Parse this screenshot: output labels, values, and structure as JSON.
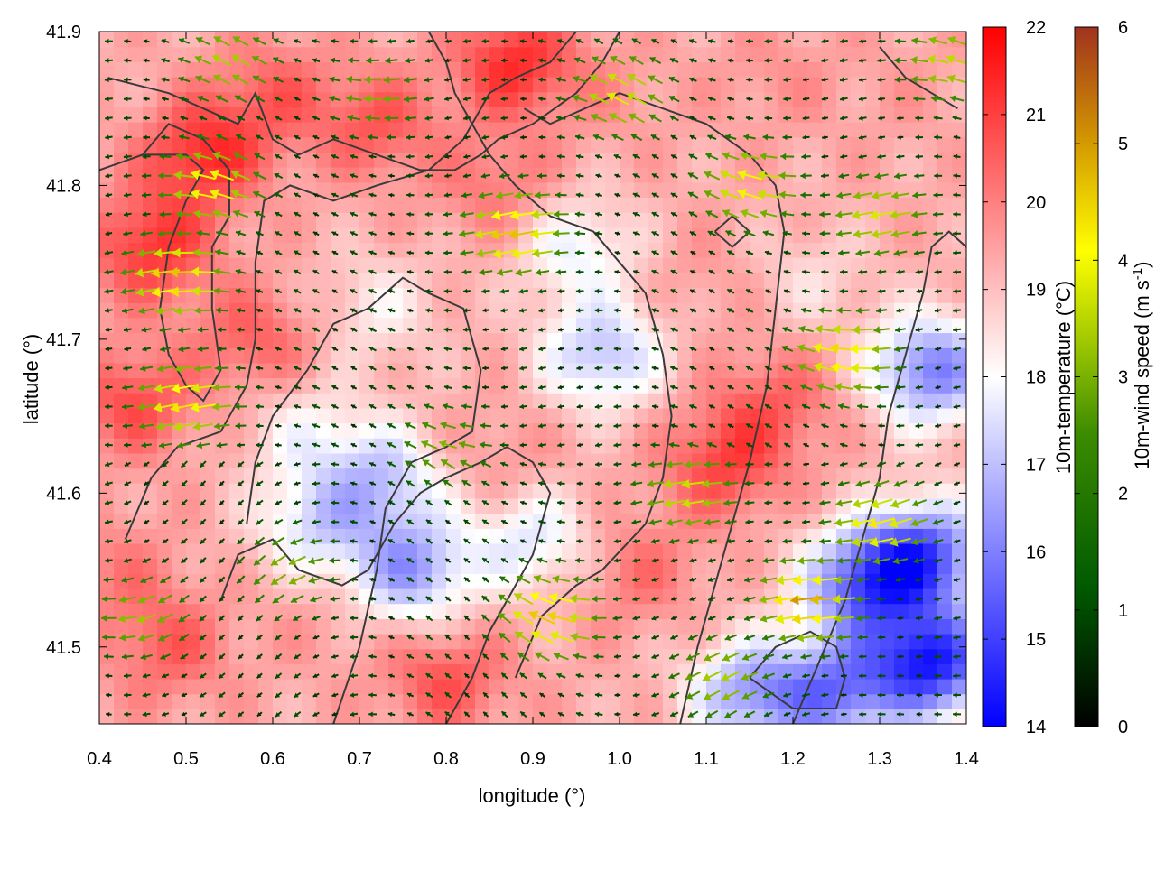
{
  "chart_data": {
    "type": "heatmap",
    "subtype": "temperature field with wind vector arrows and contour lines",
    "xlabel": "longitude (°)",
    "ylabel": "latitude (°)",
    "xlim": [
      0.4,
      1.4
    ],
    "ylim": [
      41.45,
      41.9
    ],
    "xticks": [
      "0.4",
      "0.5",
      "0.6",
      "0.7",
      "0.8",
      "0.9",
      "1.0",
      "1.1",
      "1.2",
      "1.3",
      "1.4"
    ],
    "yticks": [
      "41.5",
      "41.6",
      "41.7",
      "41.8",
      "41.9"
    ],
    "temperature_colorbar": {
      "label": "10m-temperature (°C)",
      "range": [
        14,
        22
      ],
      "ticks": [
        "14",
        "15",
        "16",
        "17",
        "18",
        "19",
        "20",
        "21",
        "22"
      ],
      "colors": [
        "#0000ff",
        "#ffffff",
        "#ff0000"
      ]
    },
    "wind_colorbar": {
      "label_main": "10m-wind speed (m s",
      "label_sup": "-1",
      "label_end": ")",
      "range": [
        0,
        6
      ],
      "ticks": [
        "0",
        "1",
        "2",
        "3",
        "4",
        "5",
        "6"
      ],
      "colors": [
        "#000000",
        "#005a00",
        "#3c8c00",
        "#a0c800",
        "#ffff00",
        "#d29600",
        "#a0321e"
      ]
    },
    "temperature_blobs": [
      {
        "lon": 0.46,
        "lat": 41.76,
        "t": 21.2
      },
      {
        "lon": 0.52,
        "lat": 41.82,
        "t": 21.3
      },
      {
        "lon": 0.44,
        "lat": 41.66,
        "t": 20.8
      },
      {
        "lon": 0.58,
        "lat": 41.7,
        "t": 20.5
      },
      {
        "lon": 0.6,
        "lat": 41.86,
        "t": 20.4
      },
      {
        "lon": 0.72,
        "lat": 41.84,
        "t": 20.6
      },
      {
        "lon": 0.88,
        "lat": 41.88,
        "t": 21.3
      },
      {
        "lon": 0.86,
        "lat": 41.8,
        "t": 20.2
      },
      {
        "lon": 1.0,
        "lat": 41.86,
        "t": 19.6
      },
      {
        "lon": 1.18,
        "lat": 41.87,
        "t": 19.7
      },
      {
        "lon": 1.32,
        "lat": 41.86,
        "t": 19.5
      },
      {
        "lon": 1.1,
        "lat": 41.74,
        "t": 19.6
      },
      {
        "lon": 1.18,
        "lat": 41.66,
        "t": 20.4
      },
      {
        "lon": 1.12,
        "lat": 41.62,
        "t": 20.9
      },
      {
        "lon": 0.86,
        "lat": 41.62,
        "t": 19.8
      },
      {
        "lon": 1.02,
        "lat": 41.55,
        "t": 20.2
      },
      {
        "lon": 0.42,
        "lat": 41.55,
        "t": 20.0
      },
      {
        "lon": 0.48,
        "lat": 41.5,
        "t": 20.5
      },
      {
        "lon": 0.66,
        "lat": 41.52,
        "t": 19.6
      },
      {
        "lon": 0.8,
        "lat": 41.48,
        "t": 20.7
      },
      {
        "lon": 0.95,
        "lat": 41.76,
        "t": 17.8
      },
      {
        "lon": 0.98,
        "lat": 41.69,
        "t": 17.0
      },
      {
        "lon": 0.73,
        "lat": 41.61,
        "t": 17.3
      },
      {
        "lon": 0.76,
        "lat": 41.55,
        "t": 16.5
      },
      {
        "lon": 0.65,
        "lat": 41.58,
        "t": 17.5
      },
      {
        "lon": 0.9,
        "lat": 41.57,
        "t": 17.6
      },
      {
        "lon": 1.36,
        "lat": 41.68,
        "t": 16.0
      },
      {
        "lon": 1.35,
        "lat": 41.56,
        "t": 15.4
      },
      {
        "lon": 1.36,
        "lat": 41.49,
        "t": 14.6
      },
      {
        "lon": 1.28,
        "lat": 41.54,
        "t": 15.8
      },
      {
        "lon": 1.15,
        "lat": 41.47,
        "t": 16.6
      },
      {
        "lon": 1.25,
        "lat": 41.47,
        "t": 16.2
      },
      {
        "lon": 1.22,
        "lat": 41.74,
        "t": 18.6
      },
      {
        "lon": 0.72,
        "lat": 41.72,
        "t": 18.3
      },
      {
        "lon": 0.64,
        "lat": 41.64,
        "t": 18.2
      }
    ],
    "wind_jets": [
      {
        "lon": 0.49,
        "lat": 41.74,
        "speed": 4.3
      },
      {
        "lon": 0.5,
        "lat": 41.66,
        "speed": 3.9
      },
      {
        "lon": 0.53,
        "lat": 41.8,
        "speed": 3.7
      },
      {
        "lon": 0.55,
        "lat": 41.88,
        "speed": 2.8
      },
      {
        "lon": 0.88,
        "lat": 41.77,
        "speed": 4.3
      },
      {
        "lon": 1.0,
        "lat": 41.86,
        "speed": 3.3
      },
      {
        "lon": 1.15,
        "lat": 41.8,
        "speed": 3.6
      },
      {
        "lon": 1.3,
        "lat": 41.78,
        "speed": 3.2
      },
      {
        "lon": 1.26,
        "lat": 41.69,
        "speed": 4.0
      },
      {
        "lon": 1.08,
        "lat": 41.6,
        "speed": 3.2
      },
      {
        "lon": 0.92,
        "lat": 41.52,
        "speed": 4.2
      },
      {
        "lon": 1.22,
        "lat": 41.53,
        "speed": 4.6
      },
      {
        "lon": 1.3,
        "lat": 41.58,
        "speed": 3.8
      },
      {
        "lon": 1.12,
        "lat": 41.48,
        "speed": 2.8
      },
      {
        "lon": 0.62,
        "lat": 41.55,
        "speed": 2.4
      },
      {
        "lon": 0.45,
        "lat": 41.52,
        "speed": 2.6
      },
      {
        "lon": 0.72,
        "lat": 41.86,
        "speed": 2.3
      },
      {
        "lon": 0.8,
        "lat": 41.63,
        "speed": 2.3
      },
      {
        "lon": 1.38,
        "lat": 41.88,
        "speed": 3.0
      }
    ],
    "contours": [
      [
        [
          0.41,
          41.87
        ],
        [
          0.48,
          41.86
        ],
        [
          0.52,
          41.85
        ],
        [
          0.56,
          41.84
        ],
        [
          0.58,
          41.86
        ],
        [
          0.6,
          41.83
        ],
        [
          0.63,
          41.82
        ],
        [
          0.67,
          41.83
        ],
        [
          0.72,
          41.82
        ],
        [
          0.77,
          41.81
        ],
        [
          0.81,
          41.81
        ],
        [
          0.84,
          41.82
        ],
        [
          0.86,
          41.83
        ],
        [
          0.9,
          41.84
        ],
        [
          0.95,
          41.86
        ],
        [
          0.98,
          41.88
        ],
        [
          1.0,
          41.9
        ]
      ],
      [
        [
          0.4,
          41.81
        ],
        [
          0.45,
          41.82
        ],
        [
          0.48,
          41.84
        ],
        [
          0.52,
          41.83
        ],
        [
          0.55,
          41.81
        ],
        [
          0.55,
          41.78
        ],
        [
          0.53,
          41.76
        ],
        [
          0.53,
          41.72
        ],
        [
          0.54,
          41.68
        ],
        [
          0.52,
          41.66
        ],
        [
          0.5,
          41.67
        ],
        [
          0.48,
          41.69
        ],
        [
          0.47,
          41.72
        ],
        [
          0.48,
          41.76
        ],
        [
          0.5,
          41.79
        ],
        [
          0.52,
          41.81
        ],
        [
          0.5,
          41.82
        ],
        [
          0.45,
          41.82
        ],
        [
          0.4,
          41.81
        ]
      ],
      [
        [
          0.43,
          41.57
        ],
        [
          0.46,
          41.61
        ],
        [
          0.49,
          41.63
        ],
        [
          0.54,
          41.64
        ],
        [
          0.57,
          41.67
        ],
        [
          0.58,
          41.7
        ],
        [
          0.58,
          41.75
        ],
        [
          0.59,
          41.79
        ],
        [
          0.62,
          41.8
        ],
        [
          0.67,
          41.79
        ],
        [
          0.72,
          41.8
        ],
        [
          0.78,
          41.81
        ],
        [
          0.82,
          41.83
        ],
        [
          0.85,
          41.86
        ],
        [
          0.88,
          41.87
        ],
        [
          0.92,
          41.88
        ],
        [
          0.95,
          41.9
        ]
      ],
      [
        [
          0.67,
          41.45
        ],
        [
          0.7,
          41.5
        ],
        [
          0.72,
          41.55
        ],
        [
          0.73,
          41.59
        ],
        [
          0.76,
          41.62
        ],
        [
          0.8,
          41.63
        ],
        [
          0.83,
          41.64
        ],
        [
          0.84,
          41.68
        ],
        [
          0.82,
          41.72
        ],
        [
          0.78,
          41.73
        ],
        [
          0.75,
          41.74
        ],
        [
          0.71,
          41.72
        ],
        [
          0.67,
          41.71
        ],
        [
          0.64,
          41.68
        ],
        [
          0.6,
          41.65
        ],
        [
          0.58,
          41.62
        ],
        [
          0.57,
          41.58
        ]
      ],
      [
        [
          0.88,
          41.48
        ],
        [
          0.91,
          41.52
        ],
        [
          0.95,
          41.54
        ],
        [
          0.98,
          41.55
        ],
        [
          1.03,
          41.58
        ],
        [
          1.05,
          41.61
        ],
        [
          1.06,
          41.65
        ],
        [
          1.05,
          41.69
        ],
        [
          1.03,
          41.73
        ],
        [
          1.0,
          41.75
        ],
        [
          0.97,
          41.77
        ],
        [
          0.92,
          41.78
        ],
        [
          0.88,
          41.8
        ],
        [
          0.85,
          41.82
        ],
        [
          0.83,
          41.84
        ],
        [
          0.81,
          41.86
        ],
        [
          0.8,
          41.88
        ],
        [
          0.78,
          41.9
        ]
      ],
      [
        [
          1.07,
          41.45
        ],
        [
          1.09,
          41.5
        ],
        [
          1.11,
          41.54
        ],
        [
          1.13,
          41.58
        ],
        [
          1.15,
          41.62
        ],
        [
          1.17,
          41.67
        ],
        [
          1.18,
          41.72
        ],
        [
          1.19,
          41.77
        ],
        [
          1.18,
          41.8
        ],
        [
          1.15,
          41.82
        ],
        [
          1.1,
          41.84
        ],
        [
          1.05,
          41.85
        ],
        [
          1.0,
          41.86
        ],
        [
          0.96,
          41.85
        ],
        [
          0.92,
          41.84
        ],
        [
          0.89,
          41.85
        ]
      ],
      [
        [
          1.2,
          41.45
        ],
        [
          1.23,
          41.49
        ],
        [
          1.26,
          41.53
        ],
        [
          1.28,
          41.57
        ],
        [
          1.3,
          41.61
        ],
        [
          1.31,
          41.65
        ],
        [
          1.33,
          41.69
        ],
        [
          1.35,
          41.73
        ],
        [
          1.36,
          41.76
        ],
        [
          1.38,
          41.77
        ],
        [
          1.4,
          41.76
        ]
      ],
      [
        [
          0.8,
          41.45
        ],
        [
          0.83,
          41.48
        ],
        [
          0.85,
          41.51
        ],
        [
          0.88,
          41.54
        ],
        [
          0.9,
          41.56
        ],
        [
          0.92,
          41.6
        ],
        [
          0.9,
          41.62
        ],
        [
          0.87,
          41.63
        ],
        [
          0.84,
          41.62
        ],
        [
          0.8,
          41.61
        ],
        [
          0.77,
          41.6
        ],
        [
          0.74,
          41.58
        ],
        [
          0.71,
          41.55
        ],
        [
          0.68,
          41.54
        ],
        [
          0.63,
          41.55
        ],
        [
          0.6,
          41.57
        ],
        [
          0.56,
          41.56
        ],
        [
          0.54,
          41.53
        ]
      ],
      [
        [
          1.15,
          41.48
        ],
        [
          1.18,
          41.5
        ],
        [
          1.22,
          41.51
        ],
        [
          1.25,
          41.5
        ],
        [
          1.26,
          41.48
        ],
        [
          1.25,
          41.46
        ],
        [
          1.2,
          41.46
        ],
        [
          1.15,
          41.48
        ]
      ],
      [
        [
          1.3,
          41.89
        ],
        [
          1.33,
          41.87
        ],
        [
          1.36,
          41.86
        ],
        [
          1.39,
          41.85
        ]
      ],
      [
        [
          1.11,
          41.77
        ],
        [
          1.13,
          41.76
        ],
        [
          1.15,
          41.77
        ],
        [
          1.13,
          41.78
        ],
        [
          1.11,
          41.77
        ]
      ]
    ]
  }
}
